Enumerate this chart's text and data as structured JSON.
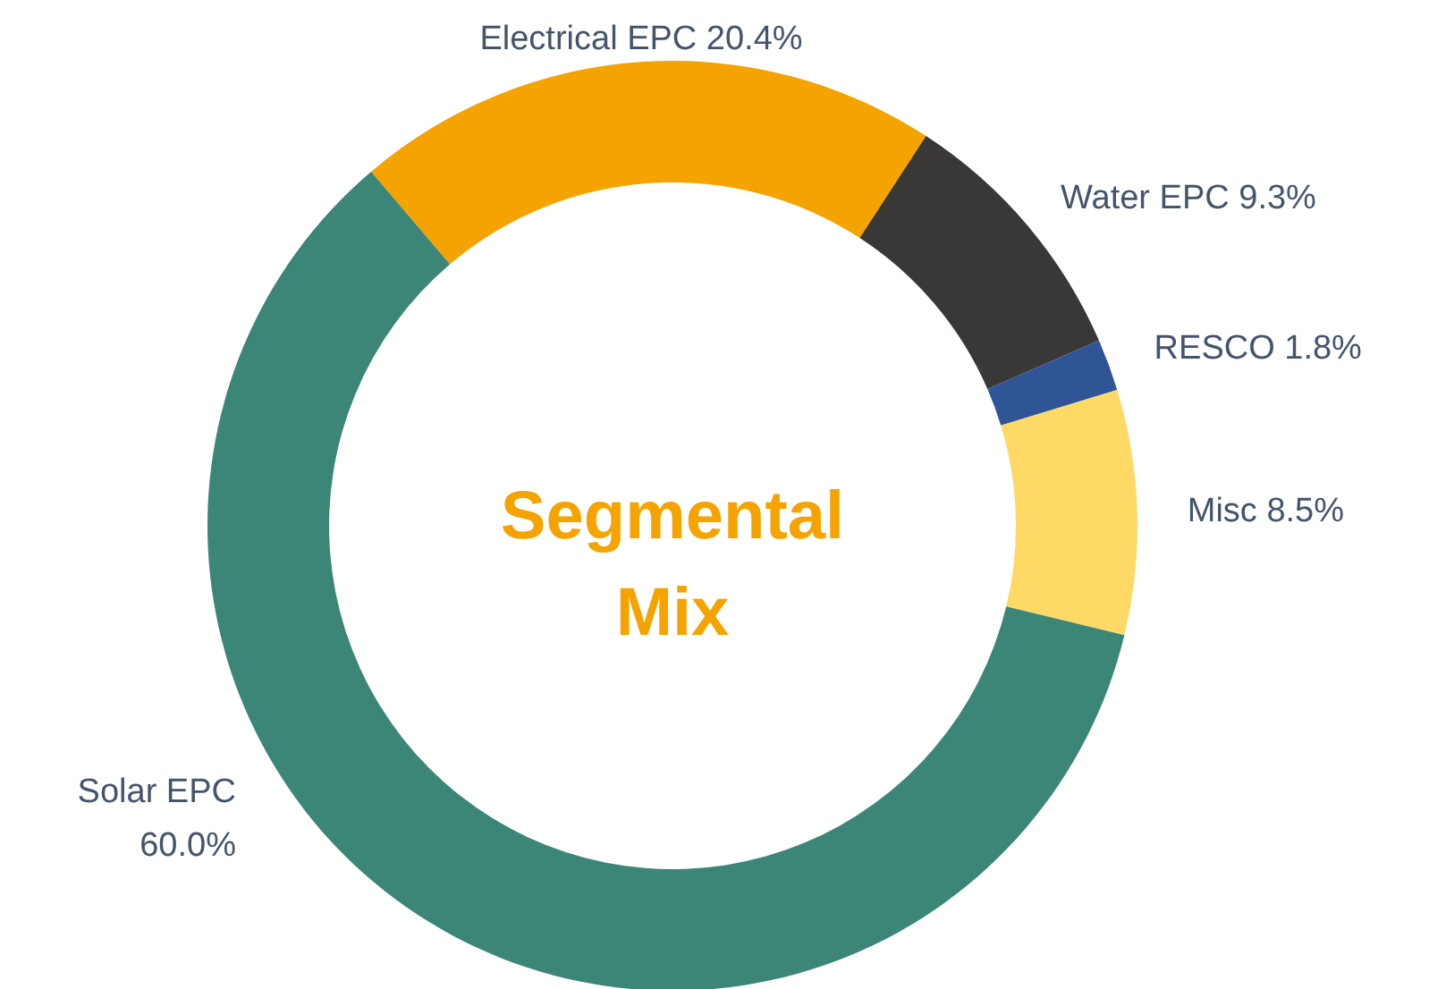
{
  "chart_data": {
    "type": "donut",
    "title": "Segmental Mix",
    "categories": [
      "Electrical EPC",
      "Water EPC",
      "RESCO",
      "Misc",
      "Solar EPC"
    ],
    "values": [
      20.4,
      9.3,
      1.8,
      8.5,
      60.0
    ],
    "colors": [
      "#f5a300",
      "#3a3836",
      "#2f5597",
      "#ffd966",
      "#3b8676"
    ],
    "value_labels": [
      "20.4%",
      "9.3%",
      "1.8%",
      "8.5%",
      "60.0%"
    ]
  }
}
